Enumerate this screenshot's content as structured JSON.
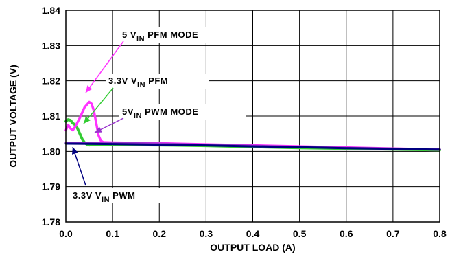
{
  "chart_data": {
    "type": "line",
    "title": "",
    "xlabel": "OUTPUT LOAD (A)",
    "ylabel": "OUTPUT VOLTAGE (V)",
    "xlim": [
      0,
      0.8
    ],
    "ylim": [
      1.78,
      1.84
    ],
    "x_ticks": [
      "0.0",
      "0.1",
      "0.2",
      "0.3",
      "0.4",
      "0.5",
      "0.6",
      "0.7",
      "0.8"
    ],
    "y_ticks": [
      "1.78",
      "1.79",
      "1.80",
      "1.81",
      "1.82",
      "1.83",
      "1.84"
    ],
    "grid": true,
    "series": [
      {
        "name": "3.3V VIN PFM",
        "color": "#33cc33",
        "points": [
          [
            0.0,
            1.8085
          ],
          [
            0.005,
            1.809
          ],
          [
            0.01,
            1.8088
          ],
          [
            0.015,
            1.808
          ],
          [
            0.02,
            1.8075
          ],
          [
            0.025,
            1.8065
          ],
          [
            0.03,
            1.805
          ],
          [
            0.035,
            1.8035
          ],
          [
            0.04,
            1.8025
          ],
          [
            0.045,
            1.802
          ],
          [
            0.05,
            1.8018
          ],
          [
            0.06,
            1.802
          ],
          [
            0.08,
            1.802
          ],
          [
            0.1,
            1.8019
          ],
          [
            0.2,
            1.8018
          ],
          [
            0.3,
            1.8016
          ],
          [
            0.4,
            1.8013
          ],
          [
            0.5,
            1.801
          ],
          [
            0.6,
            1.8008
          ],
          [
            0.7,
            1.8006
          ],
          [
            0.8,
            1.8004
          ]
        ]
      },
      {
        "name": "5 VIN PFM MODE",
        "color": "#ff33ff",
        "points": [
          [
            0.0,
            1.806
          ],
          [
            0.005,
            1.8075
          ],
          [
            0.01,
            1.8065
          ],
          [
            0.015,
            1.806
          ],
          [
            0.02,
            1.807
          ],
          [
            0.03,
            1.8095
          ],
          [
            0.04,
            1.8125
          ],
          [
            0.05,
            1.814
          ],
          [
            0.055,
            1.8135
          ],
          [
            0.06,
            1.8115
          ],
          [
            0.065,
            1.808
          ],
          [
            0.07,
            1.8045
          ],
          [
            0.075,
            1.803
          ],
          [
            0.08,
            1.8026
          ],
          [
            0.1,
            1.8025
          ],
          [
            0.2,
            1.8023
          ],
          [
            0.3,
            1.802
          ],
          [
            0.4,
            1.8017
          ],
          [
            0.5,
            1.8014
          ],
          [
            0.6,
            1.8011
          ],
          [
            0.7,
            1.8008
          ],
          [
            0.8,
            1.8005
          ]
        ]
      },
      {
        "name": "5VIN PWM MODE",
        "color": "#9933cc",
        "points": [
          [
            0.0,
            1.8025
          ],
          [
            0.1,
            1.8024
          ],
          [
            0.2,
            1.8022
          ],
          [
            0.3,
            1.8019
          ],
          [
            0.4,
            1.8016
          ],
          [
            0.5,
            1.8013
          ],
          [
            0.6,
            1.801
          ],
          [
            0.7,
            1.8008
          ],
          [
            0.8,
            1.8006
          ]
        ]
      },
      {
        "name": "3.3V VIN PWM",
        "color": "#000080",
        "points": [
          [
            0.0,
            1.8022
          ],
          [
            0.1,
            1.8021
          ],
          [
            0.2,
            1.8019
          ],
          [
            0.3,
            1.8017
          ],
          [
            0.4,
            1.8014
          ],
          [
            0.5,
            1.8012
          ],
          [
            0.6,
            1.8009
          ],
          [
            0.7,
            1.8007
          ],
          [
            0.8,
            1.8005
          ]
        ]
      }
    ],
    "annotations": [
      {
        "main": "5 V",
        "sub": "IN",
        "tail": " PFM MODE",
        "series": "5 VIN PFM MODE"
      },
      {
        "main": "3.3V V",
        "sub": "IN",
        "tail": " PFM",
        "series": "3.3V VIN PFM"
      },
      {
        "main": "5V",
        "sub": "IN",
        "tail": " PWM MODE",
        "series": "5VIN PWM MODE"
      },
      {
        "main": "3.3V V",
        "sub": "IN",
        "tail": " PWM",
        "series": "3.3V VIN PWM"
      }
    ]
  }
}
